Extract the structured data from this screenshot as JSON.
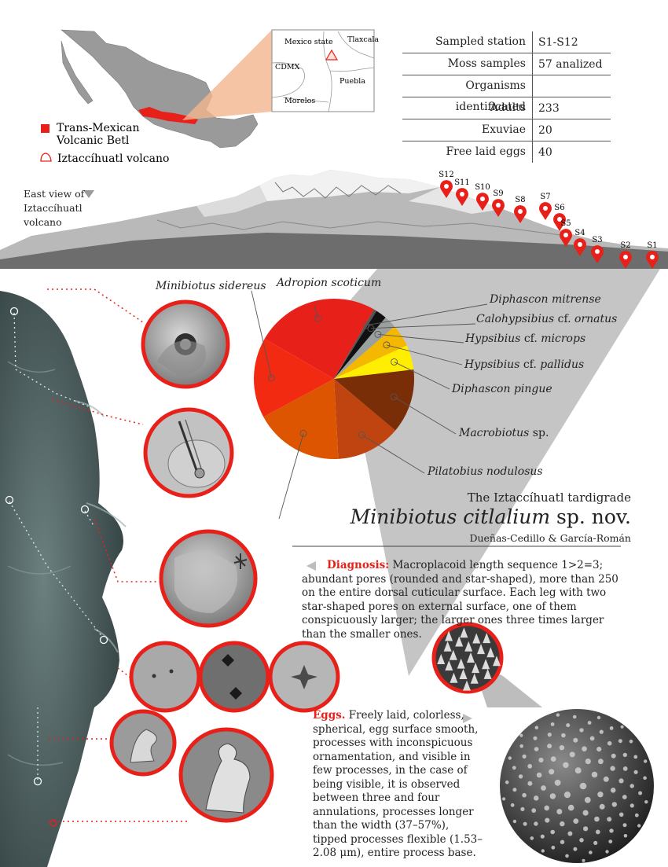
{
  "map": {
    "inset_labels": [
      "Mexico state",
      "CDMX",
      "Tlaxcala",
      "Puebla",
      "Morelos"
    ],
    "legend": [
      {
        "label": "Trans-Mexican Volcanic Betl",
        "color": "#e8201a",
        "icon": "red-square-icon"
      },
      {
        "label": "Iztaccíhuatl  volcano",
        "color": "#e8201a",
        "icon": "volcano-outline-icon"
      }
    ]
  },
  "stats_table": {
    "rows": [
      {
        "label": "Sampled station",
        "value": "S1-S12"
      },
      {
        "label": "Moss samples",
        "value": "57 analized"
      },
      {
        "label": "Organisms identificated",
        "value": ""
      },
      {
        "label": "Adults",
        "value": "233"
      },
      {
        "label": "Exuviae",
        "value": "20"
      },
      {
        "label": "Free laid eggs",
        "value": "40"
      }
    ]
  },
  "volcano": {
    "caption_lines": [
      "East view of",
      "Iztaccíhuatl",
      "volcano"
    ],
    "stations": [
      "S12",
      "S11",
      "S10",
      "S9",
      "S8",
      "S7",
      "S6",
      "S5",
      "S4",
      "S3",
      "S2",
      "S1"
    ]
  },
  "chart_data": {
    "type": "pie",
    "title": "",
    "slices": [
      {
        "label": "Adropion scoticum",
        "value": 25,
        "color": "#e8201a"
      },
      {
        "label": "Diphascon mitrense",
        "value": 0.6,
        "color": "#555555"
      },
      {
        "label": "Calohypsibius cf. ornatus",
        "value": 2.2,
        "color": "#111111"
      },
      {
        "label": "Hypsibius cf. microps",
        "value": 2.5,
        "color": "#9aa0a0"
      },
      {
        "label": "Hypsibius cf. pallidus",
        "value": 4.5,
        "color": "#f5b800"
      },
      {
        "label": "Diphascon pingue",
        "value": 5,
        "color": "#ffee00"
      },
      {
        "label": "Macrobiotus sp.",
        "value": 13,
        "color": "#7a2e08"
      },
      {
        "label": "Pilatobius nodulosus",
        "value": 13,
        "color": "#c0440f"
      },
      {
        "label": "Minibiotus citlalium sp. nov.",
        "value": 18,
        "color": "#dd5500"
      },
      {
        "label": "Minibiotus sidereus",
        "value": 16.2,
        "color": "#f22a12"
      }
    ]
  },
  "pie_labels": {
    "sidereus": "Minibiotus sidereus",
    "scoticum": "Adropion scoticum",
    "mitrense": "Diphascon mitrense",
    "ornatus_a": "Calohypsibius",
    "ornatus_b": " cf. ",
    "ornatus_c": "ornatus",
    "microps_a": "Hypsibius",
    "microps_b": " cf. ",
    "microps_c": "microps",
    "pallidus_a": "Hypsibius",
    "pallidus_b": " cf. ",
    "pallidus_c": "pallidus",
    "pingue": "Diphascon pingue",
    "macro_a": "Macrobiotus",
    "macro_b": " sp.",
    "pilatobius": "Pilatobius nodulosus"
  },
  "heading": {
    "line1": "The Iztaccíhuatl tardigrade",
    "species": "Minibiotus citlalium",
    "species_suffix": " sp. nov.",
    "authors": "Dueñas-Cedillo & García-Román"
  },
  "diagnosis": {
    "label": "Diagnosis:",
    "text": " Macroplacoid length sequence 1>2=3; abundant pores (rounded and star-shaped), more than 250 on the entire dorsal cuticular surface. Each leg with two star-shaped pores on external surface, one of them conspicuously larger; the larger ones three times larger than the smaller ones."
  },
  "eggs": {
    "label": "Eggs.",
    "text": " Freely laid, colorless, spherical, egg surface smooth, processes with inconspicuous ornamentation, and visible in few processes, in the case of being visible, it is observed between three and four annulations, processes longer than the width (37–57%), tipped processes flexible (1.53–2.08 μm), entire process base."
  }
}
